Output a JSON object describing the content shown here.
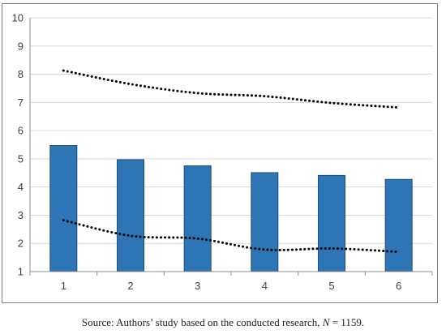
{
  "chart_data": {
    "type": "bar",
    "categories": [
      "1",
      "2",
      "3",
      "4",
      "5",
      "6"
    ],
    "series": [
      {
        "type": "bar",
        "values": [
          5.47,
          4.97,
          4.75,
          4.51,
          4.41,
          4.27
        ],
        "color": "#2e75b6"
      },
      {
        "type": "line",
        "style": "dotted",
        "values": [
          8.13,
          7.65,
          7.33,
          7.22,
          6.98,
          6.82
        ],
        "color": "#000000"
      },
      {
        "type": "line",
        "style": "dotted",
        "values": [
          2.82,
          2.27,
          2.17,
          1.78,
          1.82,
          1.7
        ],
        "color": "#000000"
      }
    ],
    "yticks": [
      "1",
      "2",
      "3",
      "4",
      "5",
      "6",
      "7",
      "8",
      "9",
      "10"
    ],
    "ylim": [
      1,
      10
    ],
    "grid": true,
    "legend": "none"
  },
  "caption": {
    "prefix": "Source: Authors’ study based on the conducted research, ",
    "n_symbol": "N",
    "suffix": " = 1159."
  }
}
